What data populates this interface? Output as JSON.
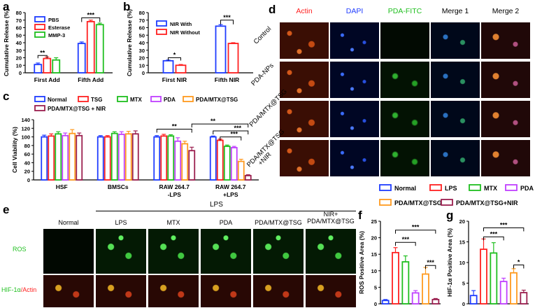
{
  "panel_letters": {
    "a": "a",
    "b": "b",
    "c": "c",
    "d": "d",
    "e": "e",
    "f": "f",
    "g": "g"
  },
  "colors": {
    "blue": "#1f3cff",
    "red": "#ff2020",
    "green": "#1fbf1f",
    "violet": "#c040ff",
    "orange": "#ff9a1f",
    "maroon": "#9b1f4f"
  },
  "chart_data": [
    {
      "id": "a",
      "type": "bar",
      "ylabel": "Cumulative Release (%)",
      "ylim": [
        0,
        80
      ],
      "yticks": [
        0,
        10,
        20,
        30,
        40,
        50,
        60,
        70,
        80
      ],
      "categories": [
        "First Add",
        "Fifth Add"
      ],
      "series": [
        {
          "name": "PBS",
          "color": "#1f3cff",
          "values": [
            11,
            39
          ],
          "errors": [
            2,
            2
          ]
        },
        {
          "name": "Esterase",
          "color": "#ff2020",
          "values": [
            19,
            68
          ],
          "errors": [
            2,
            2
          ]
        },
        {
          "name": "MMP-3",
          "color": "#1fbf1f",
          "values": [
            17,
            64
          ],
          "errors": [
            3,
            2
          ]
        }
      ],
      "sig": [
        {
          "label": "**",
          "group": 0
        },
        {
          "label": "***",
          "group": 1
        }
      ]
    },
    {
      "id": "b",
      "type": "bar",
      "ylabel": "Cumulative Release (%)",
      "ylim": [
        0,
        80
      ],
      "yticks": [
        0,
        10,
        20,
        30,
        40,
        50,
        60,
        70,
        80
      ],
      "categories": [
        "First NIR",
        "Fifth NIR"
      ],
      "series": [
        {
          "name": "NIR With",
          "color": "#1f3cff",
          "values": [
            16,
            62
          ],
          "errors": [
            1,
            2
          ]
        },
        {
          "name": "NIR Without",
          "color": "#ff2020",
          "values": [
            10,
            39
          ],
          "errors": [
            1,
            1
          ]
        }
      ],
      "sig": [
        {
          "label": "*",
          "group": 0
        },
        {
          "label": "***",
          "group": 1
        }
      ]
    },
    {
      "id": "c",
      "type": "bar",
      "ylabel": "Cell Viability (%)",
      "ylim": [
        0,
        140
      ],
      "yticks": [
        0,
        20,
        40,
        60,
        80,
        100,
        120,
        140
      ],
      "categories": [
        "HSF",
        "BMSCs",
        "RAW 264.7\n-LPS",
        "RAW 264.7\n+LPS"
      ],
      "series": [
        {
          "name": "Normal",
          "color": "#1f3cff",
          "values": [
            100,
            100,
            100,
            100
          ],
          "errors": [
            4,
            3,
            3,
            2
          ]
        },
        {
          "name": "TSG",
          "color": "#ff2020",
          "values": [
            102,
            100,
            102,
            92
          ],
          "errors": [
            5,
            3,
            4,
            3
          ]
        },
        {
          "name": "MTX",
          "color": "#1fbf1f",
          "values": [
            107,
            108,
            102,
            78
          ],
          "errors": [
            5,
            4,
            3,
            3
          ]
        },
        {
          "name": "PDA",
          "color": "#c040ff",
          "values": [
            103,
            106,
            90,
            75
          ],
          "errors": [
            6,
            6,
            8,
            3
          ]
        },
        {
          "name": "PDA/MTX@TSG",
          "color": "#ff9a1f",
          "values": [
            108,
            107,
            84,
            43
          ],
          "errors": [
            9,
            6,
            6,
            5
          ]
        },
        {
          "name": "PDA/MTX@TSG + NIR",
          "color": "#9b1f4f",
          "values": [
            103,
            107,
            68,
            10
          ],
          "errors": [
            6,
            7,
            8,
            2
          ]
        }
      ],
      "sig": [
        "**",
        "**",
        "***",
        "***"
      ]
    },
    {
      "id": "f",
      "type": "bar",
      "ylabel": "ROS Positive Area (%)",
      "ylim": [
        0,
        25
      ],
      "yticks": [
        0,
        5,
        10,
        15,
        20,
        25
      ],
      "categories": [
        "Normal",
        "LPS",
        "MTX",
        "PDA",
        "PDA/MTX@TSG",
        "PDA/MTX@TSG+NIR"
      ],
      "values": [
        1,
        15.5,
        12.7,
        3.3,
        9,
        1.3
      ],
      "errors": [
        0.3,
        1.5,
        1.8,
        0.7,
        2,
        0.3
      ],
      "sig": [
        "***",
        "***",
        "***"
      ]
    },
    {
      "id": "g",
      "type": "bar",
      "ylabel": "HIF-1α Positive Area (%)",
      "ylim": [
        0,
        20
      ],
      "yticks": [
        0,
        5,
        10,
        15,
        20
      ],
      "categories": [
        "Normal",
        "LPS",
        "MTX",
        "PDA",
        "PDA/MTX@TSG",
        "PDA/MTX@TSG+NIR"
      ],
      "values": [
        2,
        13.2,
        12.3,
        5.4,
        7.5,
        2.7
      ],
      "errors": [
        1.2,
        2.5,
        2.5,
        0.8,
        1,
        0.6
      ],
      "sig": [
        "***",
        "***",
        "*"
      ]
    }
  ],
  "legend_fg": {
    "items": [
      {
        "label": "Normal",
        "color": "#1f3cff"
      },
      {
        "label": "LPS",
        "color": "#ff2020"
      },
      {
        "label": "MTX",
        "color": "#1fbf1f"
      },
      {
        "label": "PDA",
        "color": "#c040ff"
      },
      {
        "label": "PDA/MTX@TSG",
        "color": "#ff9a1f"
      },
      {
        "label": "PDA/MTX@TSG+NIR",
        "color": "#9b1f4f"
      }
    ]
  },
  "panel_d": {
    "columns": [
      {
        "label": "Actin",
        "color": "#ff2020"
      },
      {
        "label": "DAPI",
        "color": "#1f3cff"
      },
      {
        "label": "PDA-FITC",
        "color": "#1fbf1f"
      },
      {
        "label": "Merge 1",
        "color": "#000000"
      },
      {
        "label": "Merge 2",
        "color": "#000000"
      }
    ],
    "rows": [
      "Control",
      "PDA-NPs",
      "PDA/MTX@TSG",
      "PDA/MTX@TSG\n+NIR"
    ]
  },
  "panel_e": {
    "header_lps": "LPS",
    "columns": [
      "Normal",
      "LPS",
      "MTX",
      "PDA",
      "PDA/MTX@TSG",
      "NIR+\nPDA/MTX@TSG"
    ],
    "rows": [
      {
        "label": "ROS",
        "color": "#1fbf1f"
      },
      {
        "label_a": "HIF-1α",
        "color_a": "#1fbf1f",
        "label_b": "/Actin",
        "color_b": "#ff2020"
      }
    ]
  }
}
